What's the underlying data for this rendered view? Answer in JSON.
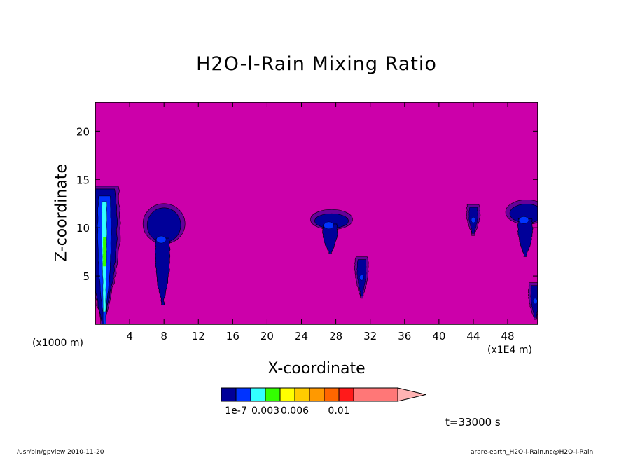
{
  "chart_data": {
    "type": "heatmap",
    "title": "H2O-l-Rain Mixing Ratio",
    "xlabel": "X-coordinate",
    "ylabel": "Z-coordinate",
    "x_unit_left": "(x1000 m)",
    "x_unit_right": "(x1E4 m)",
    "xlim": [
      0,
      51.5
    ],
    "ylim": [
      0,
      23
    ],
    "xticks": [
      4,
      8,
      12,
      16,
      20,
      24,
      28,
      32,
      36,
      40,
      44,
      48
    ],
    "yticks": [
      5,
      10,
      15,
      20
    ],
    "time_label": "t=33000 s",
    "background_color": "#cc00aa",
    "colorbar": {
      "colors": [
        "#000099",
        "#0033ff",
        "#33ffff",
        "#33ff00",
        "#ffff00",
        "#ffcc00",
        "#ff9900",
        "#ff6600",
        "#ff1a1a",
        "#ff7777"
      ],
      "extend_color": "#ffb3b3",
      "labels": [
        {
          "text": "1e-7",
          "index": 0
        },
        {
          "text": "0.003",
          "index": 2
        },
        {
          "text": "0.006",
          "index": 4
        },
        {
          "text": "0.01",
          "index": 7
        }
      ]
    },
    "features": [
      {
        "x": 0.9,
        "zmin": 0.0,
        "zmax": 14.3,
        "kind": "column"
      },
      {
        "x": 8.0,
        "zmin": 2.0,
        "zmax": 12.2,
        "kind": "cloud"
      },
      {
        "x": 27.5,
        "zmin": 7.3,
        "zmax": 11.6,
        "kind": "cloud"
      },
      {
        "x": 31.0,
        "zmin": 2.7,
        "zmax": 7.0,
        "kind": "cell"
      },
      {
        "x": 44.0,
        "zmin": 9.2,
        "zmax": 12.4,
        "kind": "cell"
      },
      {
        "x": 50.2,
        "zmin": 7.0,
        "zmax": 12.6,
        "kind": "cloud"
      },
      {
        "x": 51.2,
        "zmin": 0.5,
        "zmax": 4.3,
        "kind": "cell"
      }
    ]
  },
  "footer": {
    "left": "/usr/bin/gpview  2010-11-20",
    "right": "arare-earth_H2O-l-Rain.nc@H2O-l-Rain"
  }
}
